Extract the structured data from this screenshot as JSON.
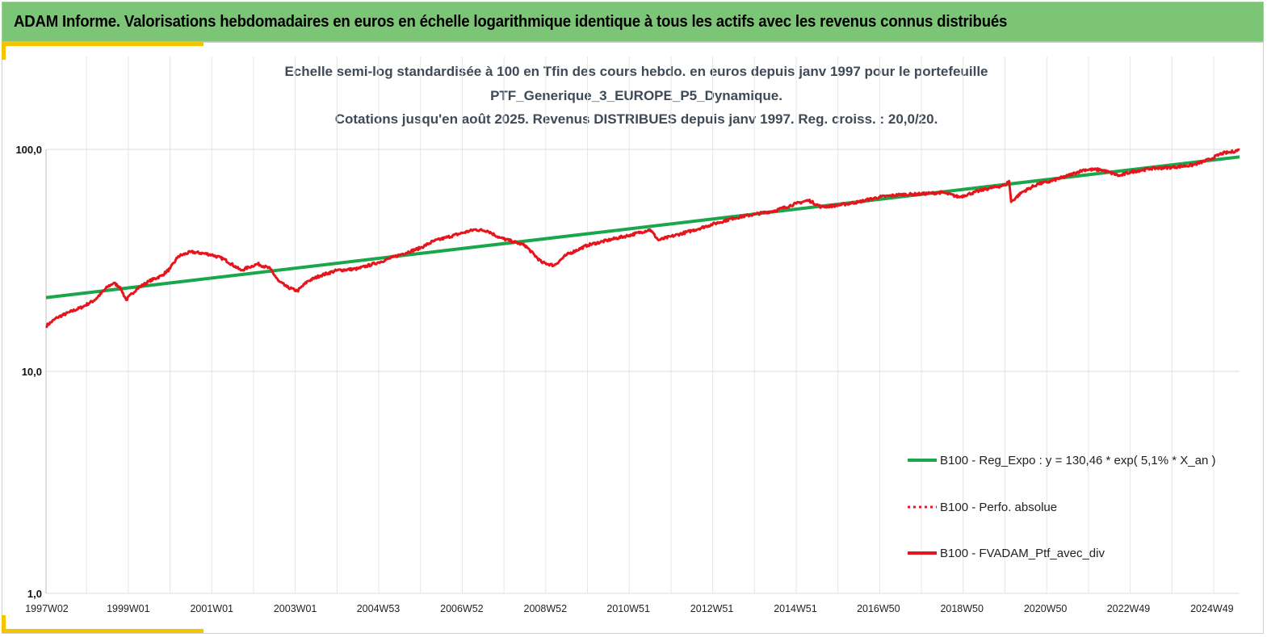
{
  "banner": {
    "title": "ADAM Informe. Valorisations hebdomadaires en euros en échelle logarithmique identique à tous les actifs avec les revenus connus distribués"
  },
  "colors": {
    "banner_bg": "#7cc576",
    "accent": "#f5c400",
    "regression": "#1aa64a",
    "portfolio": "#e8141b",
    "title_text": "#3f4a57"
  },
  "chart_data": {
    "type": "line",
    "title_lines": [
      "Echelle semi-log standardisée à 100 en Tfin des cours hebdo.  en euros depuis janv 1997 pour le portefeuille",
      "PTF_Generique_3_EUROPE_P5_Dynamique.",
      "Cotations  jusqu'en août 2025. Revenus DISTRIBUES depuis janv 1997. Reg. croiss. : 20,0/20."
    ],
    "y_scale": "log",
    "ylim": [
      1,
      100
    ],
    "y_ticks": [
      {
        "value": 100,
        "label": "100,0"
      },
      {
        "value": 10,
        "label": "10,0"
      },
      {
        "value": 1,
        "label": "1,0"
      }
    ],
    "xlim": [
      1997.03,
      2025.62
    ],
    "x_ticks": [
      {
        "value": 1997.03,
        "label": "1997W02"
      },
      {
        "value": 1999.0,
        "label": "1999W01"
      },
      {
        "value": 2001.0,
        "label": "2001W01"
      },
      {
        "value": 2003.0,
        "label": "2003W01"
      },
      {
        "value": 2004.99,
        "label": "2004W53"
      },
      {
        "value": 2006.99,
        "label": "2006W52"
      },
      {
        "value": 2008.99,
        "label": "2008W52"
      },
      {
        "value": 2010.98,
        "label": "2010W51"
      },
      {
        "value": 2012.98,
        "label": "2012W51"
      },
      {
        "value": 2014.98,
        "label": "2014W51"
      },
      {
        "value": 2016.97,
        "label": "2016W50"
      },
      {
        "value": 2018.97,
        "label": "2018W50"
      },
      {
        "value": 2020.97,
        "label": "2020W50"
      },
      {
        "value": 2022.96,
        "label": "2022W49"
      },
      {
        "value": 2024.96,
        "label": "2024W49"
      }
    ],
    "grid": {
      "vertical": true,
      "horizontal": true
    },
    "legend_position": "bottom-right",
    "series": [
      {
        "name": "B100 - Reg_Expo : y = 130,46 * exp( 5,1% *  X_an )",
        "style": "solid-green",
        "x": [
          1997.03,
          2025.62
        ],
        "y": [
          21.5,
          92.5
        ]
      },
      {
        "name": "B100 - Perfo. absolue",
        "style": "dotted-red",
        "x": [],
        "y": []
      },
      {
        "name": "B100 - FVADAM_Ptf_avec_div",
        "style": "solid-red",
        "x": [
          1997.03,
          1997.3,
          1997.6,
          1997.9,
          1998.2,
          1998.5,
          1998.65,
          1998.8,
          1998.95,
          1999.2,
          1999.5,
          1999.8,
          2000.0,
          2000.2,
          2000.5,
          2000.8,
          2001.0,
          2001.3,
          2001.7,
          2001.9,
          2002.1,
          2002.4,
          2002.6,
          2002.8,
          2003.05,
          2003.3,
          2003.6,
          2004.0,
          2004.5,
          2005.0,
          2005.5,
          2006.0,
          2006.3,
          2006.6,
          2007.0,
          2007.3,
          2007.6,
          2007.9,
          2008.2,
          2008.5,
          2008.9,
          2009.2,
          2009.5,
          2010.0,
          2010.5,
          2011.0,
          2011.5,
          2011.7,
          2012.0,
          2012.5,
          2013.0,
          2013.5,
          2014.0,
          2014.5,
          2015.0,
          2015.3,
          2015.6,
          2016.0,
          2016.5,
          2017.0,
          2017.5,
          2018.0,
          2018.5,
          2018.9,
          2019.5,
          2020.0,
          2020.1,
          2020.15,
          2020.4,
          2020.8,
          2021.0,
          2021.5,
          2021.9,
          2022.3,
          2022.75,
          2023.0,
          2023.5,
          2024.0,
          2024.5,
          2024.9,
          2025.2,
          2025.4,
          2025.62
        ],
        "y": [
          16.0,
          17.5,
          18.5,
          19.5,
          21.0,
          24.0,
          25.0,
          24.0,
          21.0,
          23.5,
          25.5,
          27.0,
          29.0,
          33.0,
          34.5,
          34.0,
          33.5,
          32.0,
          28.5,
          29.5,
          30.5,
          29.0,
          25.5,
          24.0,
          23.0,
          25.5,
          27.0,
          28.5,
          29.0,
          31.0,
          33.5,
          36.0,
          38.5,
          40.0,
          42.0,
          43.5,
          43.0,
          40.0,
          38.5,
          37.0,
          31.0,
          30.0,
          33.5,
          37.0,
          39.0,
          41.0,
          43.5,
          39.0,
          40.5,
          43.0,
          46.0,
          49.0,
          51.0,
          53.0,
          57.0,
          59.0,
          55.0,
          56.0,
          58.0,
          61.0,
          62.5,
          63.0,
          64.0,
          61.0,
          66.0,
          69.0,
          72.0,
          58.0,
          64.0,
          70.0,
          71.0,
          76.0,
          81.0,
          81.0,
          76.0,
          79.0,
          82.0,
          83.0,
          85.0,
          90.0,
          96.0,
          97.0,
          99.5
        ]
      }
    ]
  }
}
